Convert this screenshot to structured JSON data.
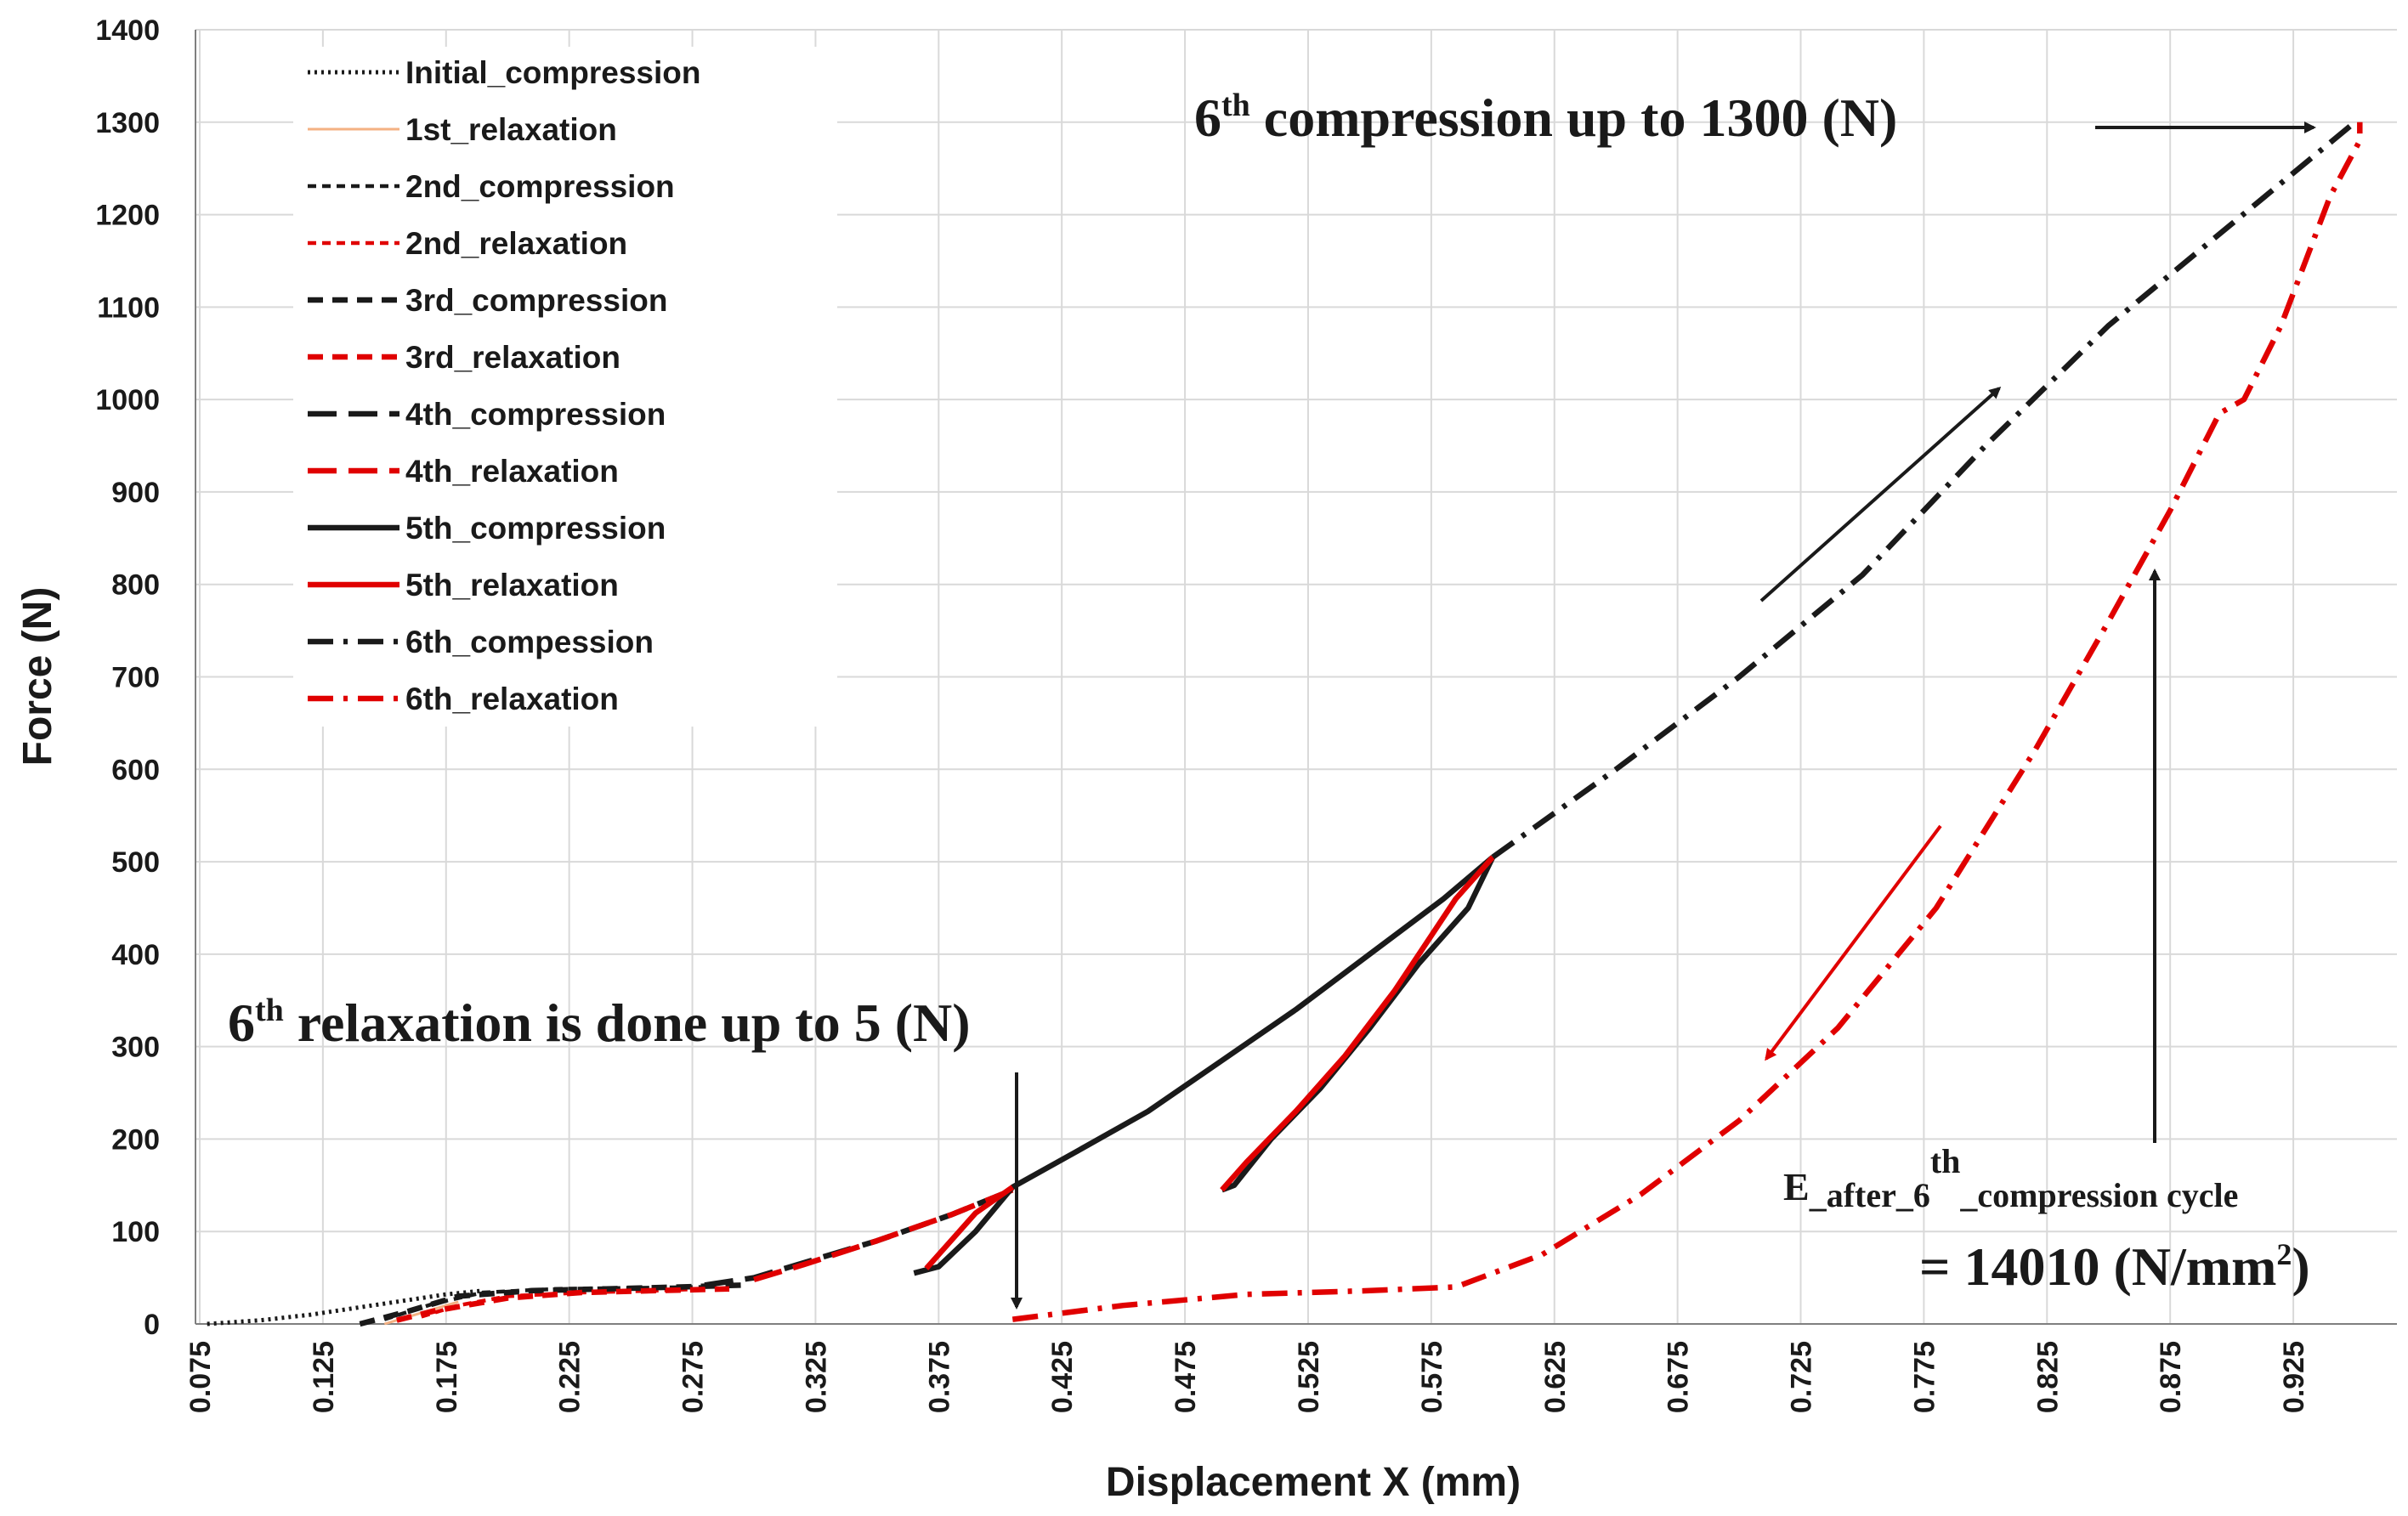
{
  "chart_data": {
    "type": "line",
    "title": "",
    "xlabel": "Displacement X (mm)",
    "ylabel": "Force (N)",
    "xlim": [
      0.075,
      0.955
    ],
    "ylim": [
      0,
      1400
    ],
    "x_ticks": [
      "0.075",
      "0.125",
      "0.175",
      "0.225",
      "0.275",
      "0.325",
      "0.375",
      "0.425",
      "0.475",
      "0.525",
      "0.575",
      "0.625",
      "0.675",
      "0.725",
      "0.775",
      "0.825",
      "0.875",
      "0.925"
    ],
    "y_ticks": [
      "0",
      "100",
      "200",
      "300",
      "400",
      "500",
      "600",
      "700",
      "800",
      "900",
      "1000",
      "1100",
      "1200",
      "1300",
      "1400"
    ],
    "grid": true,
    "legend_position": "top-left",
    "series": [
      {
        "name": "Initial_compression",
        "color": "#1a1a1a",
        "dash": "dotted",
        "x": [
          0.078,
          0.1,
          0.12,
          0.14,
          0.16,
          0.175,
          0.19
        ],
        "y": [
          0,
          4,
          10,
          18,
          26,
          32,
          36
        ]
      },
      {
        "name": "1st_relaxation",
        "color": "#f4b183",
        "dash": "thin",
        "x": [
          0.15,
          0.16,
          0.17,
          0.18
        ],
        "y": [
          0,
          8,
          16,
          24
        ]
      },
      {
        "name": "2nd_compression",
        "color": "#1a1a1a",
        "dash": "short",
        "x": [
          0.15,
          0.17,
          0.19,
          0.22,
          0.25,
          0.28
        ],
        "y": [
          5,
          22,
          34,
          38,
          39,
          40
        ]
      },
      {
        "name": "2nd_relaxation",
        "color": "#e00000",
        "dash": "short",
        "x": [
          0.165,
          0.18,
          0.2,
          0.23,
          0.26,
          0.28
        ],
        "y": [
          8,
          20,
          30,
          34,
          36,
          38
        ]
      },
      {
        "name": "3rd_compression",
        "color": "#1a1a1a",
        "dash": "medium",
        "x": [
          0.14,
          0.16,
          0.18,
          0.21,
          0.24,
          0.27,
          0.295
        ],
        "y": [
          0,
          14,
          30,
          36,
          38,
          40,
          42
        ]
      },
      {
        "name": "3rd_relaxation",
        "color": "#e00000",
        "dash": "medium",
        "x": [
          0.155,
          0.17,
          0.2,
          0.23,
          0.26,
          0.29
        ],
        "y": [
          4,
          14,
          28,
          34,
          36,
          38
        ]
      },
      {
        "name": "4th_compression",
        "color": "#1a1a1a",
        "dash": "long",
        "x": [
          0.28,
          0.3,
          0.32,
          0.35,
          0.38,
          0.405
        ],
        "y": [
          42,
          50,
          66,
          90,
          118,
          145
        ]
      },
      {
        "name": "4th_relaxation",
        "color": "#e00000",
        "dash": "long",
        "x": [
          0.3,
          0.32,
          0.35,
          0.38,
          0.405
        ],
        "y": [
          48,
          64,
          90,
          118,
          145
        ]
      },
      {
        "name": "5th_compression",
        "color": "#1a1a1a",
        "dash": "solid",
        "x": [
          0.365,
          0.375,
          0.39,
          0.405,
          0.43,
          0.46,
          0.49,
          0.52,
          0.55,
          0.58,
          0.6
        ],
        "y": [
          55,
          62,
          100,
          148,
          185,
          230,
          285,
          340,
          400,
          460,
          505
        ],
        "x2": [
          0.49,
          0.495,
          0.51,
          0.53,
          0.55,
          0.57,
          0.59,
          0.6
        ],
        "y2": [
          145,
          150,
          200,
          255,
          320,
          390,
          450,
          505
        ]
      },
      {
        "name": "5th_relaxation",
        "color": "#e00000",
        "dash": "solid",
        "x": [
          0.37,
          0.38,
          0.39,
          0.405
        ],
        "y": [
          60,
          90,
          120,
          148
        ],
        "x2": [
          0.49,
          0.5,
          0.52,
          0.54,
          0.56,
          0.575,
          0.585,
          0.6
        ],
        "y2": [
          145,
          175,
          230,
          290,
          360,
          420,
          460,
          505
        ]
      },
      {
        "name": "6th_compession",
        "color": "#1a1a1a",
        "dash": "dashdot",
        "x": [
          0.6,
          0.65,
          0.7,
          0.75,
          0.8,
          0.85,
          0.9,
          0.95
        ],
        "y": [
          505,
          600,
          700,
          810,
          950,
          1080,
          1190,
          1300
        ]
      },
      {
        "name": "6th_relaxation",
        "color": "#e00000",
        "dash": "dashdot",
        "x": [
          0.405,
          0.45,
          0.5,
          0.55,
          0.585,
          0.62,
          0.66,
          0.7,
          0.74,
          0.78,
          0.82,
          0.85,
          0.875,
          0.895,
          0.905,
          0.92,
          0.94,
          0.952,
          0.952
        ],
        "y": [
          5,
          20,
          32,
          36,
          40,
          75,
          140,
          220,
          320,
          450,
          620,
          760,
          880,
          985,
          1000,
          1080,
          1220,
          1280,
          1300
        ]
      }
    ],
    "annotations": {
      "top_text": "compression up to 1300 (N)",
      "bottom_text": "relaxation is done up to 5 (N)",
      "ordinal_num": "6",
      "ordinal_sup": "th",
      "modulus_label": "E",
      "modulus_sub1": "_after_6",
      "modulus_sup": "th",
      "modulus_sub2": "_compression cycle",
      "modulus_value": "= 14010 (N/mm",
      "modulus_unit_sup": "2",
      "modulus_close": ")"
    }
  }
}
